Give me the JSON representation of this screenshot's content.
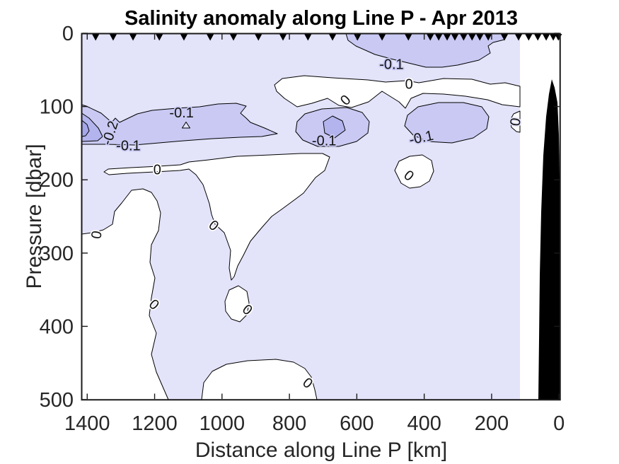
{
  "title": "Salinity anomaly along Line P - Apr 2013",
  "axes": {
    "x": {
      "label": "Distance along Line P [km]",
      "tick_values": [
        1400,
        1200,
        1000,
        800,
        600,
        400,
        200,
        0
      ],
      "limits_km": [
        1420,
        0
      ],
      "direction": "reversed (1400 km offshore at left, 0 km coast at right)"
    },
    "y": {
      "label": "Pressure [dbar]",
      "tick_values": [
        0,
        100,
        200,
        300,
        400,
        500
      ],
      "limits_dbar": [
        0,
        500
      ],
      "direction": "depth increases downward"
    }
  },
  "chart_data": {
    "type": "filled_contour_section",
    "title": "Salinity anomaly along Line P - Apr 2013",
    "xlabel": "Distance along Line P [km]",
    "ylabel": "Pressure [dbar]",
    "x_range_km": [
      1420,
      0
    ],
    "y_range_dbar": [
      0,
      500
    ],
    "contour_levels": [
      -0.3,
      -0.2,
      -0.1,
      0
    ],
    "band_colors": {
      "positive": "#ffffff",
      "m01": "#e3e3fa",
      "m02": "#c9c9f3",
      "m03": "#b3b3ee",
      "m04": "#a6a6ea",
      "bathymetry": "#000000"
    },
    "fill_bands": [
      {
        "range": "anomaly > 0",
        "color": "#ffffff"
      },
      {
        "range": "-0.1 to 0",
        "color": "#e3e3fa"
      },
      {
        "range": "-0.2 to -0.1",
        "color": "#c9c9f3"
      },
      {
        "range": "-0.3 to -0.2",
        "color": "#b3b3ee"
      },
      {
        "range": "< -0.3",
        "color": "#a6a6ea"
      }
    ],
    "contour_labels": [
      {
        "text": "-0.1",
        "km": 1120,
        "dbar": 108,
        "rot": 0,
        "halo": "#c9c9f3"
      },
      {
        "text": "-0.2",
        "km": 1333,
        "dbar": 136,
        "rot": -72,
        "halo": "#c9c9f3"
      },
      {
        "text": "-0.1",
        "km": 1278,
        "dbar": 153,
        "rot": 0,
        "halo": "#c9c9f3"
      },
      {
        "text": "0",
        "km": 1192,
        "dbar": 186,
        "rot": 0,
        "halo": "#ffffff"
      },
      {
        "text": "0",
        "km": 1373,
        "dbar": 275,
        "rot": -80,
        "halo": "#ffffff"
      },
      {
        "text": "0",
        "km": 1024,
        "dbar": 262,
        "rot": 40,
        "halo": "#ffffff"
      },
      {
        "text": "0",
        "km": 1201,
        "dbar": 370,
        "rot": 42,
        "halo": "#ffffff"
      },
      {
        "text": "0",
        "km": 924,
        "dbar": 377,
        "rot": 40,
        "halo": "#ffffff"
      },
      {
        "text": "0",
        "km": 745,
        "dbar": 477,
        "rot": 40,
        "halo": "#ffffff"
      },
      {
        "text": "0",
        "km": 445,
        "dbar": 69,
        "rot": 0,
        "halo": "#ffffff"
      },
      {
        "text": "0",
        "km": 634,
        "dbar": 91,
        "rot": -45,
        "halo": "#ffffff"
      },
      {
        "text": "-0.1",
        "km": 497,
        "dbar": 42,
        "rot": 0,
        "halo": "#c9c9f3"
      },
      {
        "text": "-0.1",
        "km": 697,
        "dbar": 146,
        "rot": 0,
        "halo": "#c9c9f3"
      },
      {
        "text": "-0.1",
        "km": 409,
        "dbar": 142,
        "rot": -12,
        "halo": "#c9c9f3"
      },
      {
        "text": "0",
        "km": 445,
        "dbar": 194,
        "rot": 40,
        "halo": "#ffffff"
      },
      {
        "text": "0",
        "km": 130,
        "dbar": 121,
        "rot": -80,
        "halo": "#e3e3fa"
      }
    ],
    "station_markers_km": [
      1375,
      1323,
      1264,
      1186,
      1113,
      1035,
      966,
      892,
      819,
      745,
      672,
      598,
      525,
      447,
      382,
      357,
      332,
      309,
      283,
      258,
      235,
      210,
      162,
      120,
      90,
      63,
      38,
      17,
      2
    ],
    "features": [
      "Fresh anomaly band (-0.1 to below -0.2) centered near 100-150 dbar from ~1420 km to ~850 km, strongest (< -0.3) at the far offshore end near 120-190 dbar",
      "Closed fresh core (< -0.2) near 670 km, 120-140 dbar",
      "Near-surface fresh patch (-0.1) between ~650 km and ~170 km, 0-50 dbar",
      "Thin positive (>0) tongue near 60-100 dbar spanning ~850 km to the coastal end",
      "Large positive (>0) regions below ~200 dbar in the offshore and central section",
      "Shaded data field ends near ~115 km; black bathymetry/no-data wedge at the coastal end below ~60 dbar"
    ],
    "legend_position": "none",
    "grid": false
  }
}
